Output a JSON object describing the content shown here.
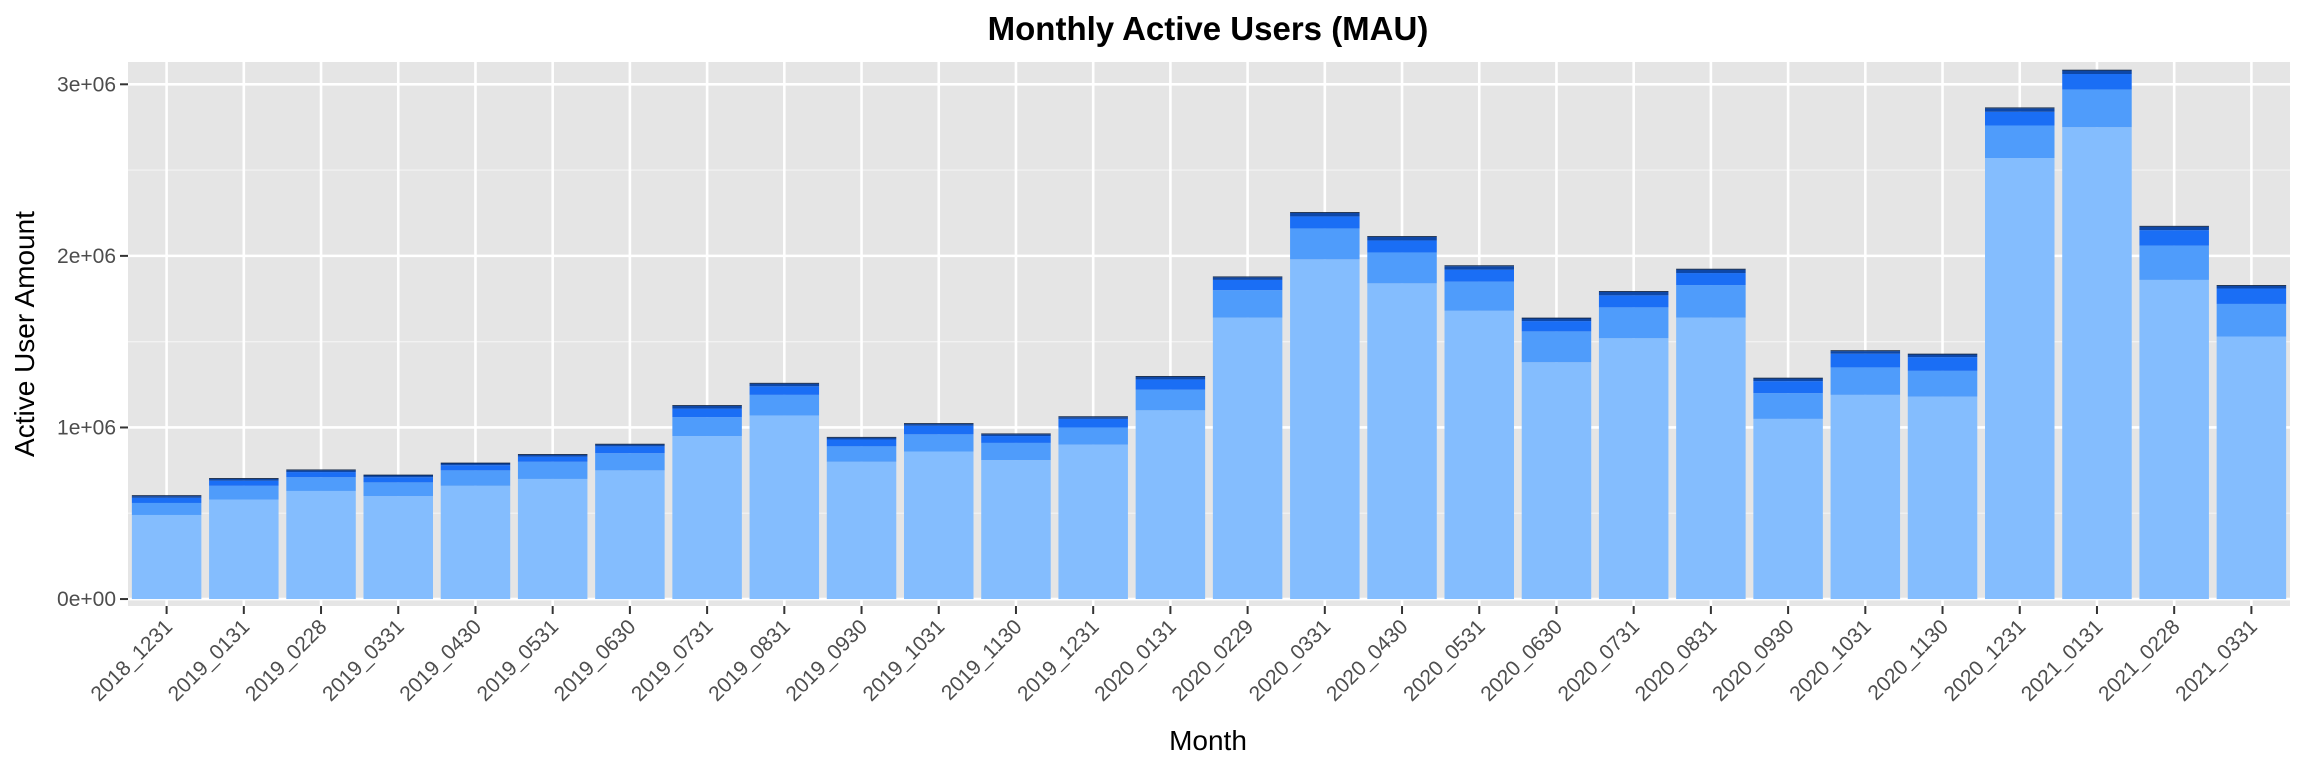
{
  "chart_data": {
    "type": "bar",
    "stacked": true,
    "title": "Monthly Active Users (MAU)",
    "xlabel": "Month",
    "ylabel": "Active User Amount",
    "ylim": [
      0,
      3250000
    ],
    "yticks": [
      0,
      1000000,
      2000000,
      3000000
    ],
    "ytick_labels": [
      "0e+00",
      "1e+06",
      "2e+06",
      "3e+06"
    ],
    "grid": true,
    "legend": "none",
    "categories": [
      "2018_1231",
      "2019_0131",
      "2019_0228",
      "2019_0331",
      "2019_0430",
      "2019_0531",
      "2019_0630",
      "2019_0731",
      "2019_0831",
      "2019_0930",
      "2019_1031",
      "2019_1130",
      "2019_1231",
      "2020_0131",
      "2020_0229",
      "2020_0331",
      "2020_0430",
      "2020_0531",
      "2020_0630",
      "2020_0731",
      "2020_0831",
      "2020_0930",
      "2020_1031",
      "2020_1130",
      "2020_1231",
      "2021_0131",
      "2021_0228",
      "2021_0331"
    ],
    "colors": [
      "#84bdfe",
      "#4f9cfb",
      "#1a6ef5",
      "#0d47a8",
      "#0a1f3f"
    ],
    "series": [
      {
        "values": [
          490000,
          580000,
          630000,
          600000,
          660000,
          700000,
          750000,
          950000,
          1070000,
          800000,
          860000,
          810000,
          900000,
          1100000,
          1640000,
          1980000,
          1840000,
          1680000,
          1380000,
          1520000,
          1640000,
          1050000,
          1190000,
          1180000,
          2570000,
          2750000,
          1860000,
          1530000
        ]
      },
      {
        "values": [
          70000,
          80000,
          80000,
          80000,
          90000,
          100000,
          100000,
          110000,
          120000,
          90000,
          100000,
          100000,
          100000,
          120000,
          160000,
          180000,
          180000,
          170000,
          180000,
          180000,
          190000,
          150000,
          160000,
          150000,
          190000,
          220000,
          200000,
          190000
        ]
      },
      {
        "values": [
          30000,
          30000,
          30000,
          30000,
          30000,
          30000,
          40000,
          50000,
          50000,
          40000,
          50000,
          40000,
          50000,
          60000,
          60000,
          70000,
          70000,
          70000,
          60000,
          70000,
          70000,
          70000,
          80000,
          80000,
          80000,
          90000,
          90000,
          90000
        ]
      },
      {
        "values": [
          10000,
          10000,
          10000,
          10000,
          10000,
          10000,
          10000,
          15000,
          15000,
          10000,
          10000,
          10000,
          10000,
          15000,
          15000,
          20000,
          20000,
          20000,
          15000,
          20000,
          20000,
          15000,
          15000,
          15000,
          20000,
          20000,
          20000,
          15000
        ]
      },
      {
        "values": [
          5000,
          5000,
          5000,
          5000,
          5000,
          5000,
          5000,
          5000,
          5000,
          5000,
          5000,
          5000,
          5000,
          5000,
          5000,
          5000,
          5000,
          5000,
          5000,
          5000,
          5000,
          5000,
          5000,
          5000,
          5000,
          5000,
          5000,
          5000
        ]
      }
    ]
  }
}
